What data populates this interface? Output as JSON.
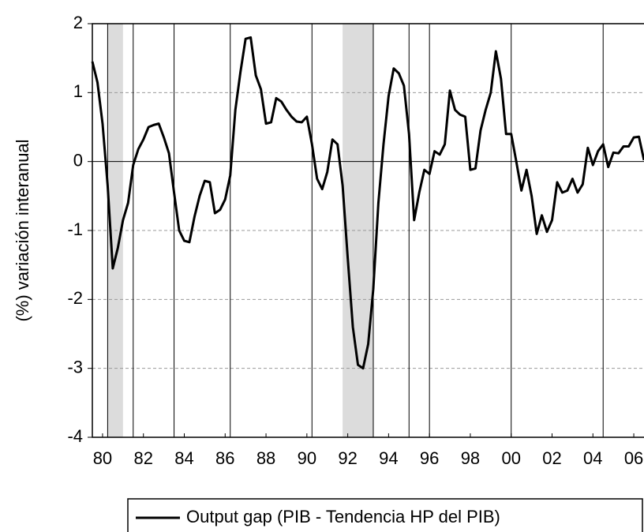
{
  "chart_data": {
    "type": "line",
    "y_label": "(%) variación interanual",
    "x": [
      1980,
      1980.25,
      1980.5,
      1980.75,
      1981,
      1981.25,
      1981.5,
      1981.75,
      1982,
      1982.25,
      1982.5,
      1982.75,
      1983,
      1983.25,
      1983.5,
      1983.75,
      1984,
      1984.25,
      1984.5,
      1984.75,
      1985,
      1985.25,
      1985.5,
      1985.75,
      1986,
      1986.25,
      1986.5,
      1986.75,
      1987,
      1987.25,
      1987.5,
      1987.75,
      1988,
      1988.25,
      1988.5,
      1988.75,
      1989,
      1989.25,
      1989.5,
      1989.75,
      1990,
      1990.25,
      1990.5,
      1990.75,
      1991,
      1991.25,
      1991.5,
      1991.75,
      1992,
      1992.25,
      1992.5,
      1992.75,
      1993,
      1993.25,
      1993.5,
      1993.75,
      1994,
      1994.25,
      1994.5,
      1994.75,
      1995,
      1995.25,
      1995.5,
      1995.75,
      1996,
      1996.25,
      1996.5,
      1996.75,
      1997,
      1997.25,
      1997.5,
      1997.75,
      1998,
      1998.25,
      1998.5,
      1998.75,
      1999,
      1999.25,
      1999.5,
      1999.75,
      2000,
      2000.25,
      2000.5,
      2000.75,
      2001,
      2001.25,
      2001.5,
      2001.75,
      2002,
      2002.25,
      2002.5,
      2002.75,
      2003,
      2003.25,
      2003.5,
      2003.75,
      2004,
      2004.25,
      2004.5,
      2004.75,
      2005,
      2005.25,
      2005.5,
      2005.75,
      2006,
      2006.25,
      2006.5,
      2006.75,
      2007
    ],
    "series": [
      {
        "name": "Output gap (PIB - Tendencia HP del PIB)",
        "color": "#000000",
        "values": [
          1.45,
          1.15,
          0.55,
          -0.35,
          -1.55,
          -1.25,
          -0.85,
          -0.6,
          -0.05,
          0.18,
          0.32,
          0.5,
          0.53,
          0.55,
          0.35,
          0.12,
          -0.45,
          -1.0,
          -1.15,
          -1.17,
          -0.8,
          -0.5,
          -0.28,
          -0.3,
          -0.75,
          -0.7,
          -0.55,
          -0.2,
          0.75,
          1.3,
          1.78,
          1.8,
          1.25,
          1.05,
          0.55,
          0.57,
          0.92,
          0.87,
          0.75,
          0.65,
          0.58,
          0.57,
          0.65,
          0.25,
          -0.25,
          -0.4,
          -0.15,
          0.32,
          0.25,
          -0.35,
          -1.4,
          -2.4,
          -2.95,
          -3.0,
          -2.65,
          -1.85,
          -0.6,
          0.25,
          0.95,
          1.35,
          1.28,
          1.1,
          0.4,
          -0.85,
          -0.45,
          -0.12,
          -0.18,
          0.15,
          0.1,
          0.25,
          1.03,
          0.75,
          0.68,
          0.65,
          -0.12,
          -0.1,
          0.45,
          0.75,
          1.0,
          1.6,
          1.2,
          0.4,
          0.4,
          0.0,
          -0.42,
          -0.12,
          -0.5,
          -1.05,
          -0.78,
          -1.02,
          -0.85,
          -0.3,
          -0.45,
          -0.42,
          -0.25,
          -0.45,
          -0.33,
          0.2,
          -0.05,
          0.15,
          0.25,
          -0.08,
          0.13,
          0.12,
          0.22,
          0.22,
          0.35,
          0.36,
          0.02
        ]
      }
    ],
    "xlim": [
      1980,
      2007
    ],
    "ylim": [
      -4,
      2
    ],
    "yticks": [
      -4,
      -3,
      -2,
      -1,
      0,
      1,
      2
    ],
    "xticks": [
      {
        "value": 1980.5,
        "label": "80"
      },
      {
        "value": 1982.5,
        "label": "82"
      },
      {
        "value": 1984.5,
        "label": "84"
      },
      {
        "value": 1986.5,
        "label": "86"
      },
      {
        "value": 1988.5,
        "label": "88"
      },
      {
        "value": 1990.5,
        "label": "90"
      },
      {
        "value": 1992.5,
        "label": "92"
      },
      {
        "value": 1994.5,
        "label": "94"
      },
      {
        "value": 1996.5,
        "label": "96"
      },
      {
        "value": 1998.5,
        "label": "98"
      },
      {
        "value": 2000.5,
        "label": "00"
      },
      {
        "value": 2002.5,
        "label": "02"
      },
      {
        "value": 2004.5,
        "label": "04"
      },
      {
        "value": 2006.5,
        "label": "06"
      }
    ],
    "vlines": [
      1980.75,
      1982,
      1984,
      1986.75,
      1990.75,
      1993.75,
      1995.5,
      1996.5,
      2000.5,
      2005
    ],
    "shaded": [
      [
        1980.75,
        1981.5
      ],
      [
        1992.25,
        1993.75
      ]
    ],
    "shade_color": "#dcdcdc",
    "grid": true
  }
}
